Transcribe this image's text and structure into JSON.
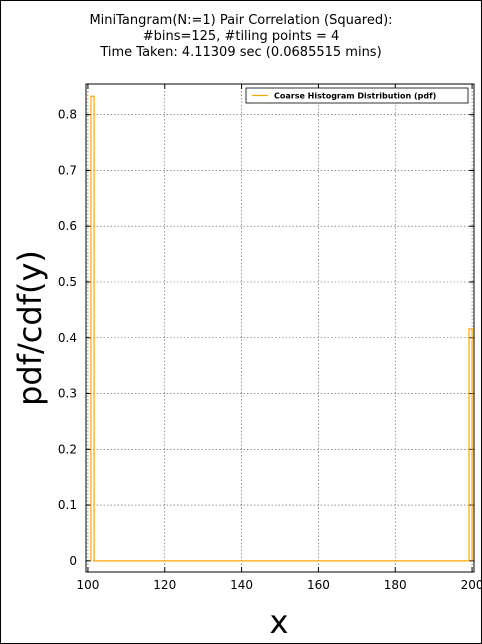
{
  "chart_data": {
    "type": "line",
    "title_lines": [
      "MiniTangram(N:=1) Pair Correlation (Squared):",
      "#bins=125, #tiling points = 4",
      "Time Taken: 4.11309 sec (0.0685515 mins)"
    ],
    "xlabel": "x",
    "ylabel": "pdf/cdf(y)",
    "xlim": [
      99.5,
      200.5
    ],
    "ylim": [
      -0.02,
      0.855
    ],
    "xticks": [
      100,
      120,
      140,
      160,
      180,
      200
    ],
    "yticks": [
      0,
      0.1,
      0.2,
      0.3,
      0.4,
      0.5,
      0.6,
      0.7,
      0.8
    ],
    "ytick_labels": [
      "0",
      "0.1",
      "0.2",
      "0.3",
      "0.4",
      "0.5",
      "0.6",
      "0.7",
      "0.8"
    ],
    "grid": true,
    "legend_position": "top-right",
    "series": [
      {
        "name": "Coarse Histogram Distribution (pdf)",
        "color": "#ffa500",
        "x": [
          100.8,
          100.8,
          101.6,
          101.6,
          199.2,
          199.2,
          200.0,
          200.0
        ],
        "y": [
          0,
          0.833,
          0.833,
          0,
          0,
          0.416,
          0.416,
          0
        ]
      }
    ]
  }
}
